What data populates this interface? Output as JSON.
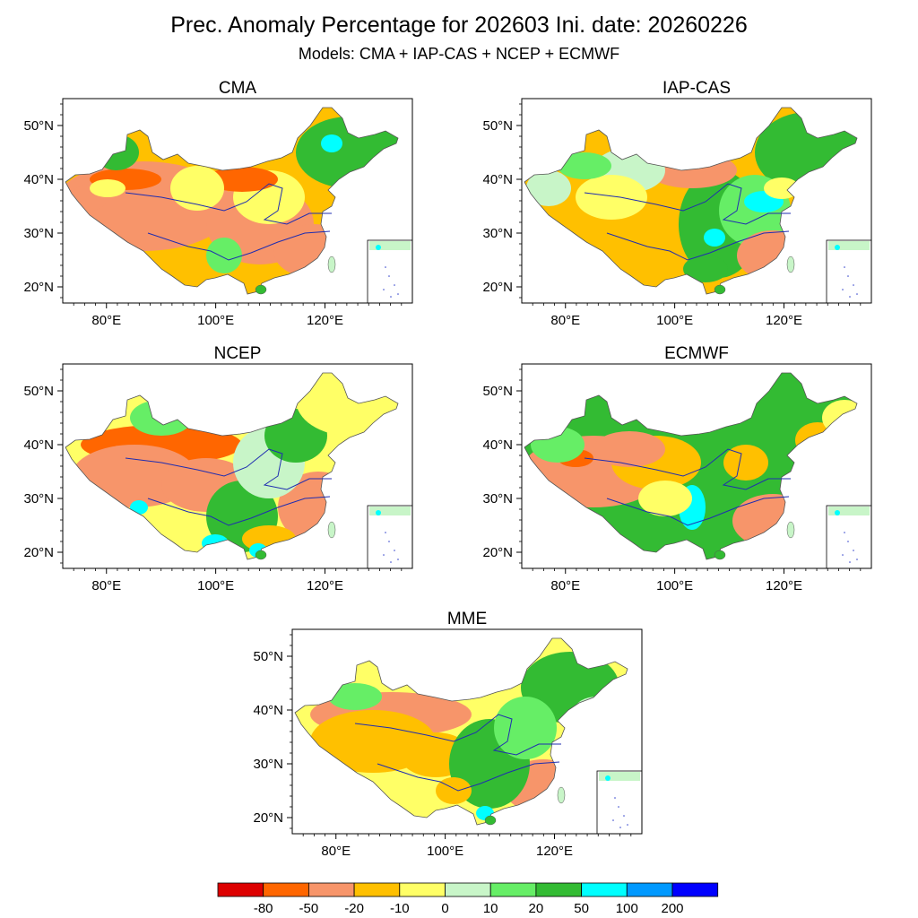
{
  "figure": {
    "title": "Prec. Anomaly Percentage for 202603 Ini. date: 20260226",
    "subtitle": "Models: CMA + IAP-CAS + NCEP + ECMWF"
  },
  "panels": [
    {
      "name": "CMA"
    },
    {
      "name": "IAP-CAS"
    },
    {
      "name": "NCEP"
    },
    {
      "name": "ECMWF"
    },
    {
      "name": "MME"
    }
  ],
  "axes": {
    "lat_ticks": [
      "50°N",
      "40°N",
      "30°N",
      "20°N"
    ],
    "lon_ticks": [
      "80°E",
      "100°E",
      "120°E"
    ]
  },
  "legend": {
    "labels": [
      "-80",
      "-50",
      "-20",
      "-10",
      "0",
      "10",
      "20",
      "50",
      "100",
      "200"
    ],
    "colors": [
      "#dd0000",
      "#ff6600",
      "#f7956a",
      "#ffc000",
      "#ffff66",
      "#c8f5c8",
      "#66ee66",
      "#33bb33",
      "#00ffff",
      "#0099ff",
      "#0000ff"
    ]
  },
  "chart_data": {
    "type": "map",
    "title": "Prec. Anomaly Percentage for 202603 Ini. date: 20260226",
    "subtitle": "Models: CMA + IAP-CAS + NCEP + ECMWF",
    "variable": "Precipitation anomaly percentage (%)",
    "region": "China",
    "lon_range": [
      72,
      136
    ],
    "lat_range": [
      17,
      55
    ],
    "colorbar_bounds": [
      -80,
      -50,
      -20,
      -10,
      0,
      10,
      20,
      50,
      100,
      200
    ],
    "panels": [
      "CMA",
      "IAP-CAS",
      "NCEP",
      "ECMWF",
      "MME"
    ]
  }
}
